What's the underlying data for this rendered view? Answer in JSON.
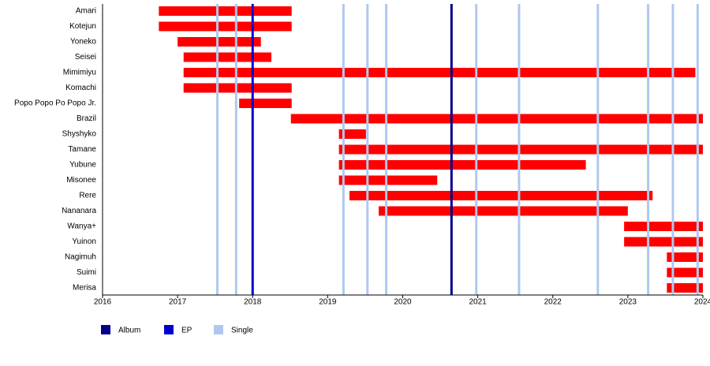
{
  "chart_data": {
    "type": "timeline",
    "members": [
      {
        "name": "Amari",
        "start": 2016.75,
        "end": 2018.52
      },
      {
        "name": "Kotejun",
        "start": 2016.75,
        "end": 2018.52
      },
      {
        "name": "Yoneko",
        "start": 2017.0,
        "end": 2018.11
      },
      {
        "name": "Seisei",
        "start": 2017.08,
        "end": 2018.25
      },
      {
        "name": "Mimimiyu",
        "start": 2017.08,
        "end": 2023.9
      },
      {
        "name": "Komachi",
        "start": 2017.08,
        "end": 2018.52
      },
      {
        "name": "Popo Popo Po Popo Jr.",
        "start": 2017.82,
        "end": 2018.52
      },
      {
        "name": "Brazil",
        "start": 2018.51,
        "end": 2024.0
      },
      {
        "name": "Shyshyko",
        "start": 2019.15,
        "end": 2019.51
      },
      {
        "name": "Tamane",
        "start": 2019.15,
        "end": 2024.0
      },
      {
        "name": "Yubune",
        "start": 2019.15,
        "end": 2022.44
      },
      {
        "name": "Misonee",
        "start": 2019.15,
        "end": 2020.46
      },
      {
        "name": "Rere",
        "start": 2019.29,
        "end": 2023.33
      },
      {
        "name": "Nananara",
        "start": 2019.68,
        "end": 2023.0
      },
      {
        "name": "Wanya+",
        "start": 2022.95,
        "end": 2024.0
      },
      {
        "name": "Yuinon",
        "start": 2022.95,
        "end": 2024.0
      },
      {
        "name": "Nagimuh",
        "start": 2023.52,
        "end": 2024.0
      },
      {
        "name": "Suimi",
        "start": 2023.52,
        "end": 2024.0
      },
      {
        "name": "Merisa",
        "start": 2023.52,
        "end": 2024.0
      }
    ],
    "bar_color": "#ff0000",
    "release_types": [
      {
        "name": "Album",
        "color": "#00008b",
        "dates": [
          2020.65
        ]
      },
      {
        "name": "EP",
        "color": "#0000cd",
        "dates": [
          2018.0
        ]
      },
      {
        "name": "Single",
        "color": "#b0c8f0",
        "dates": [
          2017.53,
          2017.78,
          2019.21,
          2019.53,
          2019.78,
          2020.98,
          2021.55,
          2022.6,
          2023.27,
          2023.6,
          2023.93
        ]
      }
    ],
    "xlim": [
      2016,
      2024
    ],
    "xticks": [
      2016,
      2017,
      2018,
      2019,
      2020,
      2021,
      2022,
      2023,
      2024
    ]
  }
}
